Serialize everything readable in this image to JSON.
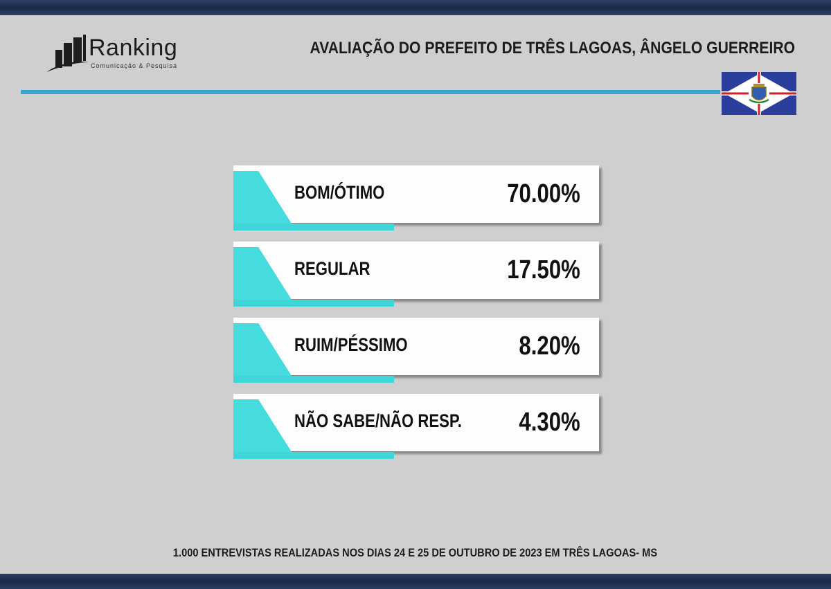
{
  "brand": {
    "name": "Ranking",
    "tagline": "Comunicação & Pesquisa"
  },
  "header": {
    "title": "AVALIAÇÃO DO PREFEITO DE  TRÊS LAGOAS, ÂNGELO GUERREIRO",
    "flag_icon": "tres-lagoas-flag-icon"
  },
  "colors": {
    "accent_teal": "#3fd6d9",
    "rule_blue": "#3aa3cf",
    "frame_navy": "#1a2947",
    "background": "#cfcfcf"
  },
  "chart_data": {
    "type": "table",
    "categories": [
      "BOM/ÓTIMO",
      "REGULAR",
      "RUIM/PÉSSIMO",
      "NÃO SABE/NÃO RESP."
    ],
    "values": [
      70.0,
      17.5,
      8.2,
      4.3
    ],
    "value_labels": [
      "70.00%",
      "17.50%",
      "8.20%",
      "4.30%"
    ]
  },
  "footer": {
    "note": "1.000 ENTREVISTAS REALIZADAS NOS DIAS 24 E 25 DE OUTUBRO DE 2023 EM TRÊS LAGOAS- MS"
  }
}
